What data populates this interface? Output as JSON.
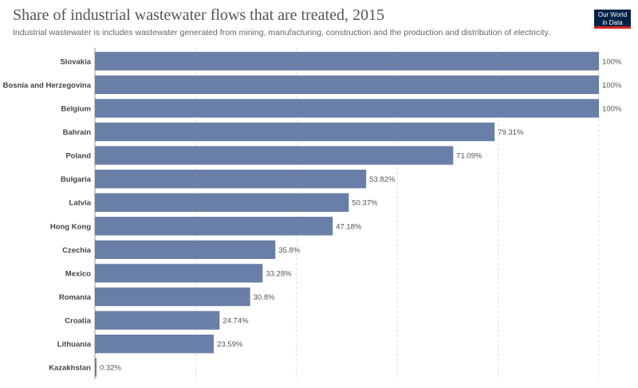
{
  "title": "Share of industrial wastewater flows that are treated, 2015",
  "subtitle": "Industrial wastewater is includes wastewater generated from mining, manufacturing, construction and the production and distribution of electricity.",
  "logo": {
    "line1": "Our World",
    "line2": "in Data",
    "bg_color": "#002147",
    "accent_color": "#ce261e"
  },
  "chart_data": {
    "type": "bar",
    "orientation": "horizontal",
    "bar_color": "#6a7fa8",
    "xlim": [
      0,
      100
    ],
    "grid": true,
    "categories": [
      "Slovakia",
      "Bosnia and Herzegovina",
      "Belgium",
      "Bahrain",
      "Poland",
      "Bulgaria",
      "Latvia",
      "Hong Kong",
      "Czechia",
      "Mexico",
      "Romania",
      "Croatia",
      "Lithuania",
      "Kazakhstan"
    ],
    "values": [
      100,
      100,
      100,
      79.31,
      71.09,
      53.82,
      50.37,
      47.18,
      35.8,
      33.28,
      30.8,
      24.74,
      23.59,
      0.32
    ],
    "value_labels": [
      "100%",
      "100%",
      "100%",
      "79.31%",
      "71.09%",
      "53.82%",
      "50.37%",
      "47.18%",
      "35.8%",
      "33.28%",
      "30.8%",
      "24.74%",
      "23.59%",
      "0.32%"
    ]
  }
}
